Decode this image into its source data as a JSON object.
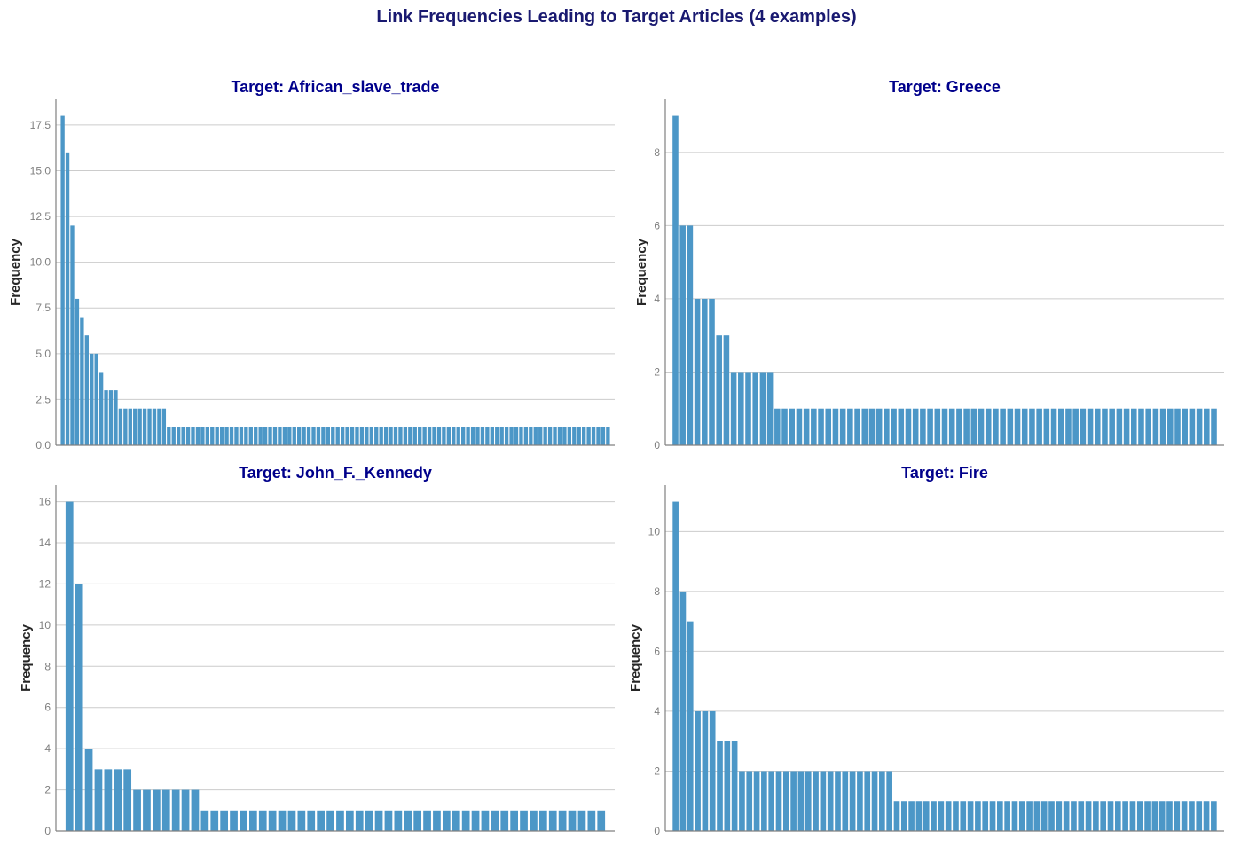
{
  "title": "Link Frequencies Leading to Target Articles (4 examples)",
  "colors": {
    "bar": "#4c97c7",
    "title": "#191970",
    "subtitle": "#00008b"
  },
  "chart_data": [
    {
      "type": "bar",
      "title": "Target: African_slave_trade",
      "ylabel": "Frequency",
      "xlabel": "",
      "ylim": [
        0,
        18.9
      ],
      "yticks": [
        0,
        2.5,
        5,
        7.5,
        10,
        12.5,
        15,
        17.5
      ],
      "ytick_labels": [
        "0.0",
        "2.5",
        "5.0",
        "7.5",
        "10.0",
        "12.5",
        "15.0",
        "17.5"
      ],
      "grid": true,
      "values": [
        18,
        16,
        12,
        8,
        7,
        6,
        5,
        5,
        4,
        3,
        3,
        3,
        2,
        2,
        2,
        2,
        2,
        2,
        2,
        2,
        2,
        2,
        1,
        1,
        1,
        1,
        1,
        1,
        1,
        1,
        1,
        1,
        1,
        1,
        1,
        1,
        1,
        1,
        1,
        1,
        1,
        1,
        1,
        1,
        1,
        1,
        1,
        1,
        1,
        1,
        1,
        1,
        1,
        1,
        1,
        1,
        1,
        1,
        1,
        1,
        1,
        1,
        1,
        1,
        1,
        1,
        1,
        1,
        1,
        1,
        1,
        1,
        1,
        1,
        1,
        1,
        1,
        1,
        1,
        1,
        1,
        1,
        1,
        1,
        1,
        1,
        1,
        1,
        1,
        1,
        1,
        1,
        1,
        1,
        1,
        1,
        1,
        1,
        1,
        1,
        1,
        1,
        1,
        1,
        1,
        1,
        1,
        1,
        1,
        1,
        1,
        1,
        1,
        1
      ]
    },
    {
      "type": "bar",
      "title": "Target: Greece",
      "ylabel": "Frequency",
      "xlabel": "",
      "ylim": [
        0,
        9.45
      ],
      "yticks": [
        0,
        2,
        4,
        6,
        8
      ],
      "ytick_labels": [
        "0",
        "2",
        "4",
        "6",
        "8"
      ],
      "grid": true,
      "values": [
        9,
        6,
        6,
        4,
        4,
        4,
        3,
        3,
        2,
        2,
        2,
        2,
        2,
        2,
        1,
        1,
        1,
        1,
        1,
        1,
        1,
        1,
        1,
        1,
        1,
        1,
        1,
        1,
        1,
        1,
        1,
        1,
        1,
        1,
        1,
        1,
        1,
        1,
        1,
        1,
        1,
        1,
        1,
        1,
        1,
        1,
        1,
        1,
        1,
        1,
        1,
        1,
        1,
        1,
        1,
        1,
        1,
        1,
        1,
        1,
        1,
        1,
        1,
        1,
        1,
        1,
        1,
        1,
        1,
        1,
        1,
        1,
        1,
        1,
        1
      ]
    },
    {
      "type": "bar",
      "title": "Target: John_F._Kennedy",
      "ylabel": "Frequency",
      "xlabel": "",
      "ylim": [
        0,
        16.8
      ],
      "yticks": [
        0,
        2,
        4,
        6,
        8,
        10,
        12,
        14,
        16
      ],
      "ytick_labels": [
        "0",
        "2",
        "4",
        "6",
        "8",
        "10",
        "12",
        "14",
        "16"
      ],
      "grid": true,
      "values": [
        16,
        12,
        4,
        3,
        3,
        3,
        3,
        2,
        2,
        2,
        2,
        2,
        2,
        2,
        1,
        1,
        1,
        1,
        1,
        1,
        1,
        1,
        1,
        1,
        1,
        1,
        1,
        1,
        1,
        1,
        1,
        1,
        1,
        1,
        1,
        1,
        1,
        1,
        1,
        1,
        1,
        1,
        1,
        1,
        1,
        1,
        1,
        1,
        1,
        1,
        1,
        1,
        1,
        1,
        1,
        1
      ]
    },
    {
      "type": "bar",
      "title": "Target: Fire",
      "ylabel": "Frequency",
      "xlabel": "",
      "ylim": [
        0,
        11.55
      ],
      "yticks": [
        0,
        2,
        4,
        6,
        8,
        10
      ],
      "ytick_labels": [
        "0",
        "2",
        "4",
        "6",
        "8",
        "10"
      ],
      "grid": true,
      "values": [
        11,
        8,
        7,
        4,
        4,
        4,
        3,
        3,
        3,
        2,
        2,
        2,
        2,
        2,
        2,
        2,
        2,
        2,
        2,
        2,
        2,
        2,
        2,
        2,
        2,
        2,
        2,
        2,
        2,
        2,
        1,
        1,
        1,
        1,
        1,
        1,
        1,
        1,
        1,
        1,
        1,
        1,
        1,
        1,
        1,
        1,
        1,
        1,
        1,
        1,
        1,
        1,
        1,
        1,
        1,
        1,
        1,
        1,
        1,
        1,
        1,
        1,
        1,
        1,
        1,
        1,
        1,
        1,
        1,
        1,
        1,
        1,
        1,
        1
      ]
    }
  ]
}
